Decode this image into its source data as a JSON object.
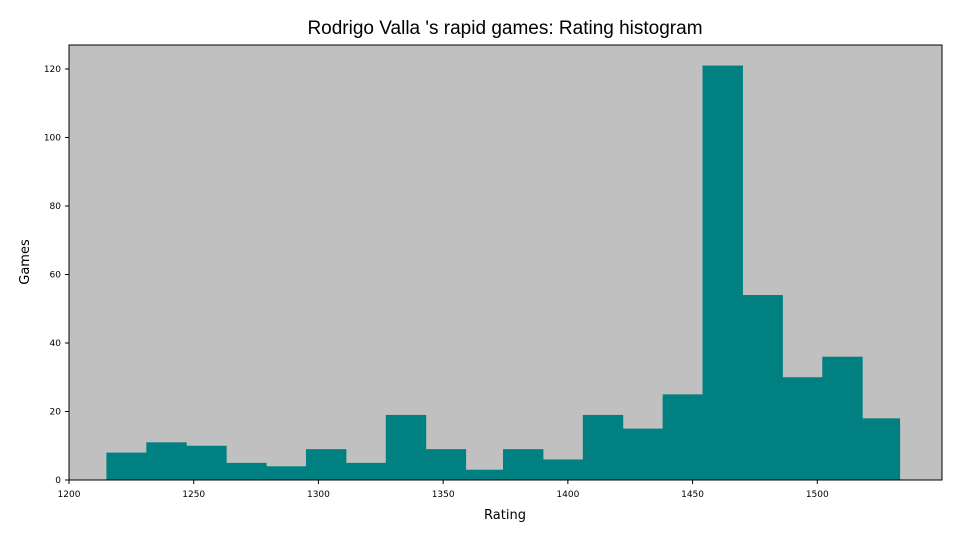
{
  "chart_data": {
    "type": "bar",
    "title": "Rodrigo Valla 's rapid games: Rating histogram",
    "xlabel": "Rating",
    "ylabel": "Games",
    "xlim": [
      1200,
      1550
    ],
    "ylim": [
      0,
      127
    ],
    "x_ticks": [
      1200,
      1250,
      1300,
      1350,
      1400,
      1450,
      1500
    ],
    "y_ticks": [
      0,
      20,
      40,
      60,
      80,
      100,
      120
    ],
    "bin_edges": [
      1215,
      1231,
      1247,
      1263,
      1279,
      1295,
      1311,
      1327,
      1343,
      1359,
      1374,
      1390,
      1406,
      1422,
      1438,
      1454,
      1470,
      1486,
      1502,
      1518,
      1533
    ],
    "values": [
      8,
      11,
      10,
      5,
      4,
      9,
      5,
      19,
      9,
      3,
      9,
      6,
      19,
      15,
      25,
      121,
      54,
      30,
      36,
      18
    ],
    "colors": {
      "bar": "#008080",
      "plot_background": "#c0c0c0"
    },
    "grid": false,
    "legend": "none"
  }
}
